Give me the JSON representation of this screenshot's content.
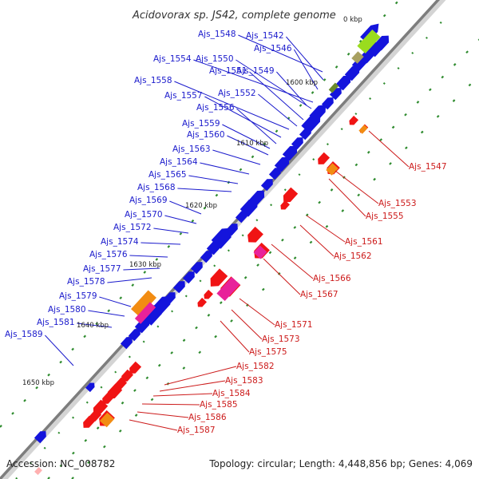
{
  "title": "Acidovorax sp. JS42, complete genome",
  "footer": {
    "accession": "Accession: NC_008782",
    "summary": "Topology: circular; Length: 4,448,856 bp; Genes: 4,069"
  },
  "colors": {
    "backbone": "#8c8c8c",
    "forward_label": "#1a1acc",
    "reverse_label": "#cc1a1a",
    "tick": "#2e8b2e"
  },
  "kbp_markers": [
    "1600 kbp",
    "1610 kbp",
    "1620 kbp",
    "1630 kbp",
    "1640 kbp",
    "1650 kbp"
  ],
  "kbp_partial": "0 kbp",
  "forward_genes": [
    "Ajs_1548",
    "Ajs_1542",
    "Ajs_1546",
    "Ajs_1554",
    "Ajs_1550",
    "Ajs_1551",
    "Ajs_1549",
    "Ajs_1558",
    "Ajs_1552",
    "Ajs_1557",
    "Ajs_1556",
    "Ajs_1559",
    "Ajs_1560",
    "Ajs_1563",
    "Ajs_1564",
    "Ajs_1565",
    "Ajs_1568",
    "Ajs_1569",
    "Ajs_1570",
    "Ajs_1572",
    "Ajs_1574",
    "Ajs_1576",
    "Ajs_1577",
    "Ajs_1578",
    "Ajs_1579",
    "Ajs_1580",
    "Ajs_1581",
    "Ajs_1589"
  ],
  "reverse_genes": [
    "Ajs_1547",
    "Ajs_1553",
    "Ajs_1555",
    "Ajs_1561",
    "Ajs_1562",
    "Ajs_1566",
    "Ajs_1567",
    "Ajs_1571",
    "Ajs_1573",
    "Ajs_1575",
    "Ajs_1582",
    "Ajs_1583",
    "Ajs_1584",
    "Ajs_1585",
    "Ajs_1586",
    "Ajs_1587"
  ]
}
